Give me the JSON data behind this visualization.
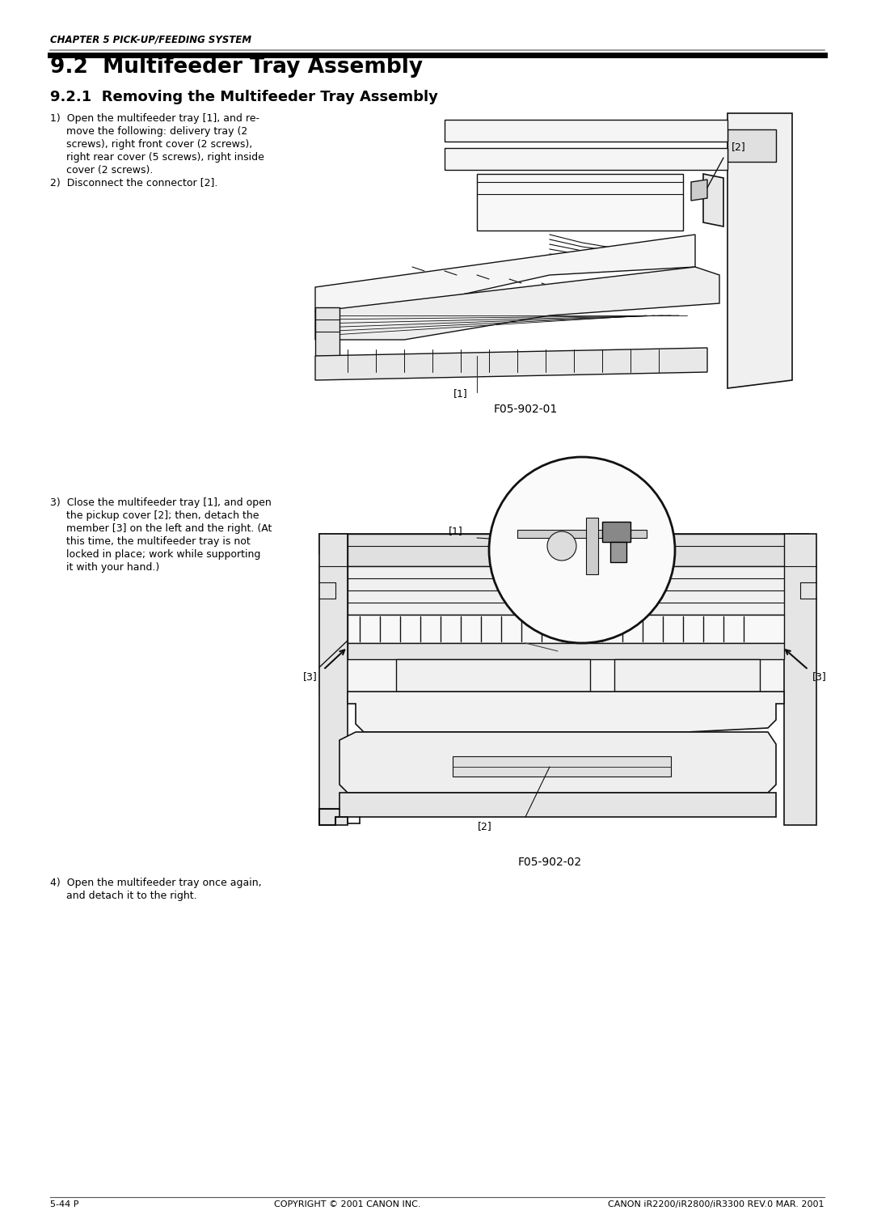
{
  "page_width": 10.8,
  "page_height": 15.12,
  "bg_color": "#ffffff",
  "header_text": "CHAPTER 5 PICK-UP/FEEDING SYSTEM",
  "header_fontsize": 8.5,
  "title_92": "9.2  Multifeeder Tray Assembly",
  "title_921": "9.2.1  Removing the Multifeeder Tray Assembly",
  "title_92_fontsize": 19,
  "title_921_fontsize": 13,
  "fig1_caption": "F05-902-01",
  "fig2_caption": "F05-902-02",
  "footer_left": "5-44 P",
  "footer_center": "COPYRIGHT © 2001 CANON INC.",
  "footer_right": "CANON iR2200/iR2800/iR3300 REV.0 MAR. 2001",
  "text_color": "#000000",
  "body_fontsize": 9.0,
  "footer_fontsize": 8.0,
  "lc": "#111111"
}
